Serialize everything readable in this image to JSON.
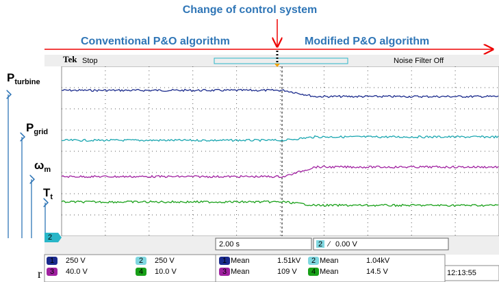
{
  "annotations": {
    "change": "Change of control system",
    "conventional": "Conventional P&O algorithm",
    "modified": "Modified P&O algorithm"
  },
  "header": {
    "brand": "Tek",
    "state": "Stop",
    "filter": "Noise Filter Off"
  },
  "signals": [
    {
      "main": "P",
      "sub": "turbine"
    },
    {
      "main": "P",
      "sub": "grid"
    },
    {
      "main": "ω",
      "sub": "m"
    },
    {
      "main": "T",
      "sub": "t"
    }
  ],
  "ground_marker": "2",
  "timebase": "2.00 s",
  "trigger": {
    "channel": "2",
    "symbol": "∕",
    "level": "0.00 V"
  },
  "channels": [
    {
      "id": "1",
      "scale": "250 V"
    },
    {
      "id": "2",
      "scale": "250 V"
    },
    {
      "id": "3",
      "scale": "40.0 V"
    },
    {
      "id": "4",
      "scale": "10.0 V"
    }
  ],
  "measurements": [
    {
      "id": "1",
      "label": "Mean",
      "value": "1.51kV"
    },
    {
      "id": "2",
      "label": "Mean",
      "value": "1.04kV"
    },
    {
      "id": "3",
      "label": "Mean",
      "value": "109 V"
    },
    {
      "id": "4",
      "label": "Mean",
      "value": "14.5 V"
    }
  ],
  "clock": "12:13:55",
  "stray": "r"
}
